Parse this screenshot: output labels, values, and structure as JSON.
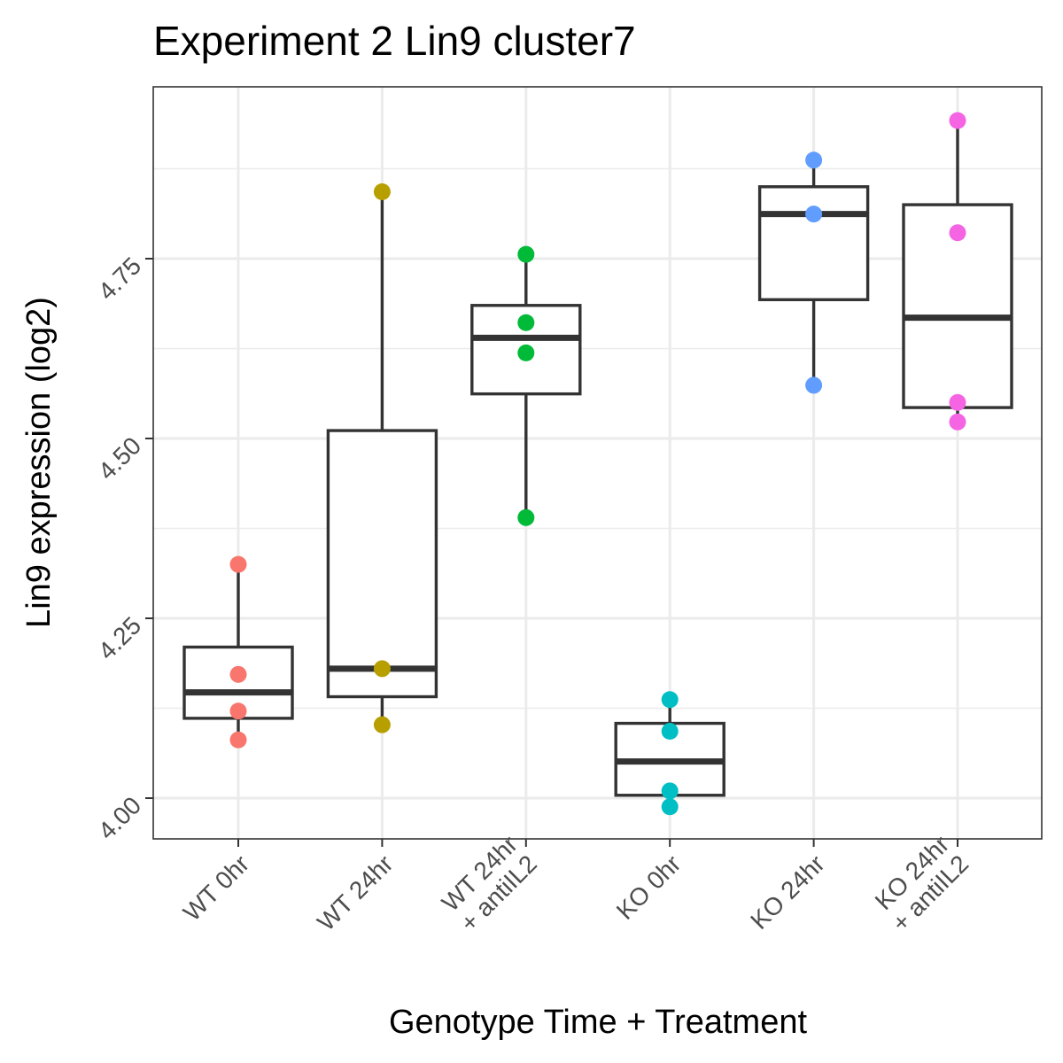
{
  "chart_data": {
    "type": "box",
    "title": "Experiment 2 Lin9 cluster7",
    "xlabel": "Genotype Time + Treatment",
    "ylabel": "Lin9 expression (log2)",
    "ylim": [
      3.94,
      4.985
    ],
    "yticks": [
      4.0,
      4.25,
      4.5,
      4.75
    ],
    "ytick_labels": [
      "4.00",
      "4.25",
      "4.50",
      "4.75"
    ],
    "grid": true,
    "groups": [
      {
        "label": [
          "WT 0hr"
        ],
        "color": "#F8766D",
        "points": [
          4.325,
          4.172,
          4.121,
          4.081
        ],
        "box": {
          "whisker_low": 4.081,
          "q1": 4.111,
          "median": 4.147,
          "q3": 4.21,
          "whisker_high": 4.325
        }
      },
      {
        "label": [
          "WT 24hr"
        ],
        "color": "#B79F00",
        "points": [
          4.843,
          4.18,
          4.102
        ],
        "box": {
          "whisker_low": 4.102,
          "q1": 4.141,
          "median": 4.18,
          "q3": 4.511,
          "whisker_high": 4.843
        }
      },
      {
        "label": [
          "WT 24hr",
          "+ antiIL2"
        ],
        "color": "#00BA38",
        "points": [
          4.756,
          4.661,
          4.619,
          4.39
        ],
        "box": {
          "whisker_low": 4.39,
          "q1": 4.562,
          "median": 4.64,
          "q3": 4.685,
          "whisker_high": 4.756
        }
      },
      {
        "label": [
          "KO 0hr"
        ],
        "color": "#00BFC4",
        "points": [
          4.137,
          4.093,
          4.01,
          3.988
        ],
        "box": {
          "whisker_low": 3.988,
          "q1": 4.004,
          "median": 4.051,
          "q3": 4.104,
          "whisker_high": 4.137
        }
      },
      {
        "label": [
          "KO 24hr"
        ],
        "color": "#619CFF",
        "points": [
          4.887,
          4.812,
          4.574
        ],
        "box": {
          "whisker_low": 4.574,
          "q1": 4.693,
          "median": 4.812,
          "q3": 4.85,
          "whisker_high": 4.887
        }
      },
      {
        "label": [
          "KO 24hr",
          "+ antiIL2"
        ],
        "color": "#F564E3",
        "points": [
          4.942,
          4.786,
          4.55,
          4.523
        ],
        "box": {
          "whisker_low": 4.523,
          "q1": 4.543,
          "median": 4.668,
          "q3": 4.825,
          "whisker_high": 4.942
        }
      }
    ]
  }
}
